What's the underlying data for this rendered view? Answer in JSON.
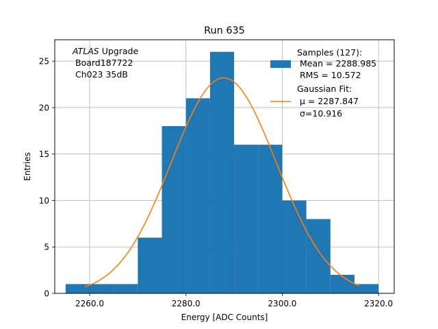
{
  "chart_data": {
    "type": "bar",
    "title": "Run 635",
    "xlabel": "Energy [ADC Counts]",
    "ylabel": "Entries",
    "xlim": [
      2252.75,
      2323.25
    ],
    "ylim": [
      0,
      27.3
    ],
    "grid": true,
    "legend_position": "top-right",
    "x_ticks": [
      2260,
      2280,
      2300,
      2320
    ],
    "x_tick_labels": [
      "2260.0",
      "2280.0",
      "2300.0",
      "2320.0"
    ],
    "y_ticks": [
      0,
      5,
      10,
      15,
      20,
      25
    ],
    "y_tick_labels": [
      "0",
      "5",
      "10",
      "15",
      "20",
      "25"
    ],
    "histogram": {
      "name": "Samples (127)",
      "color": "#1f77b4",
      "bin_edges": [
        2255,
        2260,
        2265,
        2270,
        2275,
        2280,
        2285,
        2290,
        2295,
        2300,
        2305,
        2310,
        2315,
        2320
      ],
      "counts": [
        1,
        1,
        1,
        6,
        18,
        21,
        26,
        16,
        16,
        10,
        8,
        2,
        1
      ]
    },
    "fit": {
      "name": "Gaussian Fit",
      "color": "#ff7f0e",
      "mu": 2287.847,
      "sigma": 10.916,
      "amplitude": 23.2,
      "x_range": [
        2259,
        2316
      ]
    },
    "legend": {
      "hist_lines": [
        "Samples (127):",
        " Mean = 2288.985",
        " RMS = 10.572"
      ],
      "fit_lines": [
        "Gaussian Fit:",
        " μ = 2287.847",
        " σ=10.916"
      ]
    },
    "annotation": {
      "italic": "ATLAS",
      "rest": " Upgrade",
      "lines": [
        " Board187722",
        " Ch023 35dB"
      ]
    }
  }
}
